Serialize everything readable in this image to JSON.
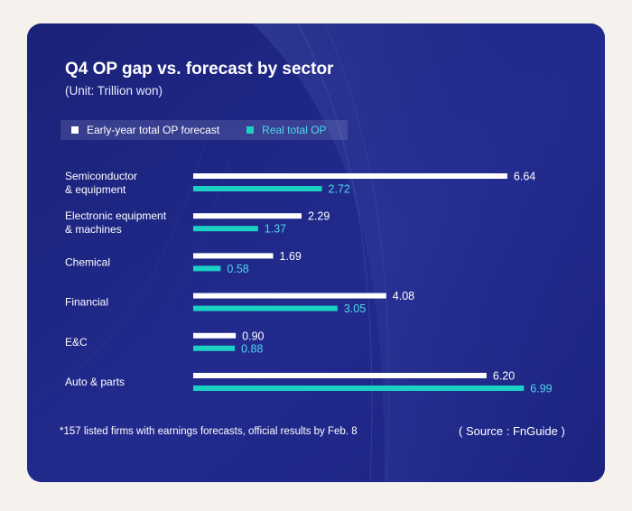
{
  "header": {
    "title": "Q4 OP gap vs. forecast by sector",
    "subtitle": "(Unit: Trillion won)"
  },
  "colors": {
    "background_page": "#f5f2ee",
    "card": "#1f2684",
    "forecast_bar": "#ffffff",
    "real_bar": "#1ad1c2",
    "real_label": "#4fd7ea"
  },
  "chart_data": {
    "type": "bar",
    "orientation": "horizontal",
    "categories": [
      [
        "Semiconductor",
        "& equipment"
      ],
      [
        "Electronic equipment",
        "& machines"
      ],
      [
        "Chemical"
      ],
      [
        "Financial"
      ],
      [
        "E&C"
      ],
      [
        "Auto & parts"
      ]
    ],
    "series": [
      {
        "name": "Early-year total OP forecast",
        "values": [
          6.64,
          2.29,
          1.69,
          4.08,
          0.9,
          6.2
        ]
      },
      {
        "name": "Real total OP",
        "values": [
          2.72,
          1.37,
          0.58,
          3.05,
          0.88,
          6.99
        ]
      }
    ],
    "value_labels": [
      [
        "6.64",
        "2.29",
        "1.69",
        "4.08",
        "0.90",
        "6.20"
      ],
      [
        "2.72",
        "1.37",
        "0.58",
        "3.05",
        "0.88",
        "6.99"
      ]
    ],
    "xlim": [
      0,
      7.5
    ],
    "grid": false,
    "legend_position": "top-left"
  },
  "footer": {
    "note": "*157 listed firms with earnings forecasts, official results by Feb. 8",
    "source": "( Source : FnGuide )"
  }
}
